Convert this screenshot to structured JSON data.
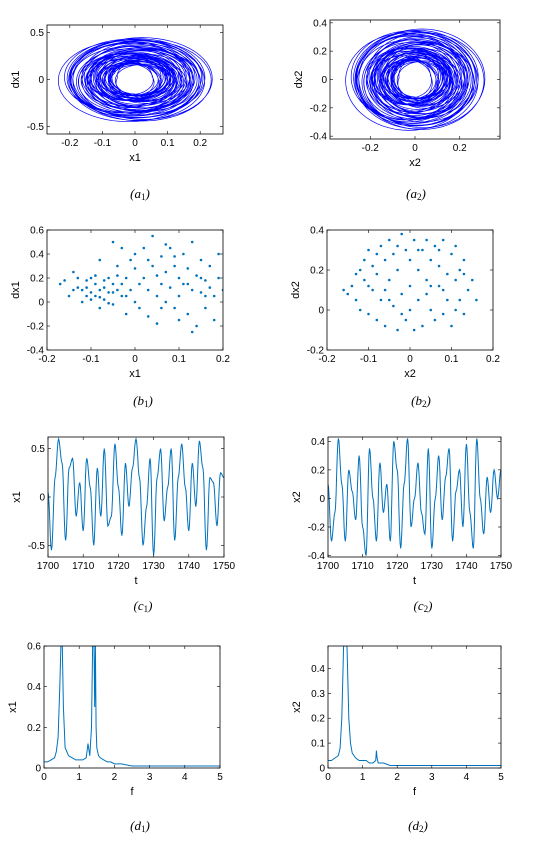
{
  "line_color": "#0072bd",
  "orbit_color": "#0000ff",
  "chart_data": [
    {
      "id": "a1",
      "type": "line",
      "style": "orbit",
      "caption": "a",
      "caption_sub": "1",
      "xlabel": "x1",
      "ylabel": "dx1",
      "xlim": [
        -0.27,
        0.27
      ],
      "ylim": [
        -0.58,
        0.58
      ],
      "xticks": [
        -0.2,
        -0.1,
        0,
        0.1,
        0.2
      ],
      "xticklabels": [
        "-0.2",
        "-0.1",
        "0",
        "0.1",
        "0.2"
      ],
      "yticks": [
        -0.5,
        0,
        0.5
      ],
      "yticklabels": [
        "-0.5",
        "0",
        "0.5"
      ],
      "orbit": {
        "center": [
          0.0,
          0.0
        ],
        "rx": 0.22,
        "ry": 0.45,
        "loops": 60
      }
    },
    {
      "id": "a2",
      "type": "line",
      "style": "orbit",
      "caption": "a",
      "caption_sub": "2",
      "xlabel": "x2",
      "ylabel": "dx2",
      "xlim": [
        -0.38,
        0.38
      ],
      "ylim": [
        -0.42,
        0.42
      ],
      "xticks": [
        -0.2,
        0,
        0.2
      ],
      "xticklabels": [
        "-0.2",
        "0",
        "0.2"
      ],
      "yticks": [
        -0.4,
        -0.2,
        0,
        0.2,
        0.4
      ],
      "yticklabels": [
        "-0.4",
        "-0.2",
        "0",
        "0.2",
        "0.4"
      ],
      "orbit": {
        "center": [
          0.0,
          0.0
        ],
        "rx": 0.29,
        "ry": 0.36,
        "loops": 60
      }
    },
    {
      "id": "b1",
      "type": "scatter",
      "caption": "b",
      "caption_sub": "1",
      "xlabel": "x1",
      "ylabel": "dx1",
      "xlim": [
        -0.2,
        0.2
      ],
      "ylim": [
        -0.4,
        0.6
      ],
      "xticks": [
        -0.2,
        -0.1,
        0,
        0.1,
        0.2
      ],
      "xticklabels": [
        "-0.2",
        "-0.1",
        "0",
        "0.1",
        "0.2"
      ],
      "yticks": [
        -0.4,
        -0.2,
        0,
        0.2,
        0.4,
        0.6
      ],
      "yticklabels": [
        "-0.4",
        "-0.2",
        "0",
        "0.2",
        "0.4",
        "0.6"
      ],
      "points": [
        [
          -0.17,
          0.15
        ],
        [
          -0.16,
          0.18
        ],
        [
          -0.15,
          0.05
        ],
        [
          -0.14,
          0.25
        ],
        [
          -0.13,
          0.2
        ],
        [
          -0.12,
          0.1
        ],
        [
          -0.12,
          0.0
        ],
        [
          -0.11,
          0.12
        ],
        [
          -0.1,
          0.08
        ],
        [
          -0.1,
          0.2
        ],
        [
          -0.09,
          0.15
        ],
        [
          -0.09,
          0.05
        ],
        [
          -0.08,
          0.1
        ],
        [
          -0.08,
          0.35
        ],
        [
          -0.08,
          -0.05
        ],
        [
          -0.07,
          0.12
        ],
        [
          -0.07,
          0.02
        ],
        [
          -0.06,
          0.2
        ],
        [
          -0.06,
          0.08
        ],
        [
          -0.05,
          0.15
        ],
        [
          -0.05,
          0.5
        ],
        [
          -0.05,
          -0.02
        ],
        [
          -0.04,
          0.1
        ],
        [
          -0.04,
          0.3
        ],
        [
          -0.03,
          0.05
        ],
        [
          -0.03,
          0.45
        ],
        [
          -0.02,
          0.2
        ],
        [
          -0.02,
          -0.1
        ],
        [
          -0.01,
          0.1
        ],
        [
          -0.01,
          0.35
        ],
        [
          0.0,
          0.0
        ],
        [
          0.0,
          0.28
        ],
        [
          0.01,
          0.15
        ],
        [
          0.01,
          -0.05
        ],
        [
          0.02,
          0.45
        ],
        [
          0.02,
          0.2
        ],
        [
          0.03,
          0.1
        ],
        [
          0.03,
          -0.12
        ],
        [
          0.04,
          0.55
        ],
        [
          0.04,
          0.3
        ],
        [
          0.05,
          0.05
        ],
        [
          0.05,
          -0.18
        ],
        [
          0.06,
          0.38
        ],
        [
          0.06,
          0.15
        ],
        [
          0.07,
          0.0
        ],
        [
          0.07,
          0.25
        ],
        [
          0.08,
          0.45
        ],
        [
          0.08,
          0.12
        ],
        [
          0.09,
          -0.05
        ],
        [
          0.09,
          0.3
        ],
        [
          0.1,
          0.2
        ],
        [
          0.1,
          0.05
        ],
        [
          0.11,
          0.4
        ],
        [
          0.11,
          0.15
        ],
        [
          0.12,
          -0.1
        ],
        [
          0.12,
          0.28
        ],
        [
          0.13,
          0.1
        ],
        [
          0.13,
          0.5
        ],
        [
          0.14,
          0.22
        ],
        [
          0.14,
          -0.2
        ],
        [
          0.15,
          0.08
        ],
        [
          0.15,
          0.35
        ],
        [
          0.16,
          0.18
        ],
        [
          0.16,
          -0.05
        ],
        [
          0.17,
          0.12
        ],
        [
          0.17,
          0.3
        ],
        [
          0.18,
          0.05
        ],
        [
          0.18,
          -0.15
        ],
        [
          0.19,
          0.2
        ],
        [
          0.2,
          0.1
        ],
        [
          -0.13,
          0.12
        ],
        [
          -0.11,
          0.18
        ],
        [
          -0.1,
          0.02
        ],
        [
          -0.09,
          0.22
        ],
        [
          -0.07,
          0.18
        ],
        [
          -0.06,
          -0.01
        ],
        [
          -0.04,
          0.22
        ],
        [
          -0.03,
          0.15
        ],
        [
          0.0,
          0.4
        ],
        [
          0.05,
          0.22
        ],
        [
          0.09,
          0.38
        ],
        [
          0.12,
          0.15
        ],
        [
          0.15,
          0.2
        ],
        [
          0.19,
          0.4
        ],
        [
          -0.14,
          0.1
        ],
        [
          -0.11,
          0.05
        ],
        [
          -0.08,
          0.04
        ],
        [
          -0.05,
          0.08
        ],
        [
          0.03,
          0.35
        ],
        [
          0.06,
          -0.05
        ],
        [
          0.1,
          -0.15
        ],
        [
          0.13,
          -0.25
        ],
        [
          0.16,
          0.05
        ],
        [
          0.07,
          0.48
        ],
        [
          -0.02,
          0.05
        ]
      ]
    },
    {
      "id": "b2",
      "type": "scatter",
      "caption": "b",
      "caption_sub": "2",
      "xlabel": "x2",
      "ylabel": "dx2",
      "xlim": [
        -0.2,
        0.2
      ],
      "ylim": [
        -0.2,
        0.4
      ],
      "xticks": [
        -0.2,
        -0.1,
        0,
        0.1,
        0.2
      ],
      "xticklabels": [
        "-0.2",
        "-0.1",
        "0",
        "0.1",
        "0.2"
      ],
      "yticks": [
        -0.2,
        0,
        0.2,
        0.4
      ],
      "yticklabels": [
        "-0.2",
        "0",
        "0.2",
        "0.4"
      ],
      "points": [
        [
          -0.16,
          0.1
        ],
        [
          -0.15,
          0.08
        ],
        [
          -0.14,
          0.12
        ],
        [
          -0.13,
          0.05
        ],
        [
          -0.12,
          0.2
        ],
        [
          -0.12,
          0.0
        ],
        [
          -0.11,
          0.25
        ],
        [
          -0.11,
          0.15
        ],
        [
          -0.1,
          -0.02
        ],
        [
          -0.1,
          0.3
        ],
        [
          -0.09,
          0.1
        ],
        [
          -0.09,
          0.22
        ],
        [
          -0.08,
          -0.05
        ],
        [
          -0.08,
          0.18
        ],
        [
          -0.07,
          0.32
        ],
        [
          -0.07,
          0.05
        ],
        [
          -0.06,
          0.25
        ],
        [
          -0.06,
          -0.08
        ],
        [
          -0.05,
          0.15
        ],
        [
          -0.05,
          0.35
        ],
        [
          -0.04,
          0.02
        ],
        [
          -0.04,
          0.28
        ],
        [
          -0.03,
          -0.1
        ],
        [
          -0.03,
          0.2
        ],
        [
          -0.02,
          0.38
        ],
        [
          -0.02,
          0.08
        ],
        [
          -0.01,
          0.3
        ],
        [
          -0.01,
          -0.05
        ],
        [
          0.0,
          0.25
        ],
        [
          0.0,
          0.0
        ],
        [
          0.01,
          0.35
        ],
        [
          0.01,
          -0.1
        ],
        [
          0.02,
          0.2
        ],
        [
          0.02,
          0.05
        ],
        [
          0.03,
          0.3
        ],
        [
          0.03,
          -0.08
        ],
        [
          0.04,
          0.15
        ],
        [
          0.04,
          0.35
        ],
        [
          0.05,
          0.0
        ],
        [
          0.05,
          0.25
        ],
        [
          0.06,
          -0.05
        ],
        [
          0.06,
          0.32
        ],
        [
          0.07,
          0.12
        ],
        [
          0.07,
          0.22
        ],
        [
          0.08,
          -0.02
        ],
        [
          0.08,
          0.35
        ],
        [
          0.09,
          0.18
        ],
        [
          0.09,
          0.05
        ],
        [
          0.1,
          0.28
        ],
        [
          0.1,
          -0.08
        ],
        [
          0.11,
          0.15
        ],
        [
          0.11,
          0.32
        ],
        [
          0.12,
          0.05
        ],
        [
          0.12,
          0.2
        ],
        [
          0.13,
          0.25
        ],
        [
          0.13,
          -0.02
        ],
        [
          0.14,
          0.1
        ],
        [
          0.15,
          0.15
        ],
        [
          0.16,
          0.05
        ],
        [
          -0.13,
          0.18
        ],
        [
          -0.1,
          0.12
        ],
        [
          -0.08,
          0.28
        ],
        [
          -0.05,
          0.05
        ],
        [
          -0.02,
          -0.02
        ],
        [
          0.02,
          0.3
        ],
        [
          0.05,
          0.12
        ],
        [
          0.08,
          0.1
        ],
        [
          0.11,
          0.0
        ],
        [
          0.13,
          0.18
        ],
        [
          -0.06,
          0.1
        ],
        [
          0.0,
          0.12
        ],
        [
          0.04,
          0.08
        ],
        [
          -0.03,
          0.32
        ],
        [
          0.07,
          0.3
        ]
      ]
    },
    {
      "id": "c1",
      "type": "line",
      "style": "series",
      "caption": "c",
      "caption_sub": "1",
      "xlabel": "t",
      "ylabel": "x1",
      "xlim": [
        1700,
        1750
      ],
      "ylim": [
        -0.62,
        0.62
      ],
      "xticks": [
        1700,
        1710,
        1720,
        1730,
        1740,
        1750
      ],
      "xticklabels": [
        "1700",
        "1710",
        "1720",
        "1730",
        "1740",
        "1750"
      ],
      "yticks": [
        -0.5,
        0,
        0.5
      ],
      "yticklabels": [
        "-0.5",
        "0",
        "0.5"
      ],
      "x": [
        1700,
        1701,
        1702,
        1703,
        1704,
        1705,
        1706,
        1707,
        1708,
        1709,
        1710,
        1711,
        1712,
        1713,
        1714,
        1715,
        1716,
        1717,
        1718,
        1719,
        1720,
        1721,
        1722,
        1723,
        1724,
        1725,
        1726,
        1727,
        1728,
        1729,
        1730,
        1731,
        1732,
        1733,
        1734,
        1735,
        1736,
        1737,
        1738,
        1739,
        1740,
        1741,
        1742,
        1743,
        1744,
        1745,
        1746,
        1747,
        1748,
        1749,
        1750
      ],
      "y": [
        0.05,
        -0.55,
        0.2,
        0.6,
        0.35,
        -0.45,
        0.3,
        0.4,
        -0.2,
        0.15,
        -0.35,
        0.4,
        0.1,
        -0.5,
        0.3,
        -0.2,
        0.5,
        -0.3,
        -0.2,
        0.55,
        0.1,
        -0.4,
        0.35,
        -0.1,
        0.3,
        0.6,
        0.2,
        -0.5,
        -0.1,
        0.4,
        -0.6,
        0.2,
        0.5,
        -0.25,
        0.1,
        0.5,
        -0.45,
        0.2,
        0.55,
        0.1,
        -0.35,
        0.35,
        -0.1,
        0.58,
        0.3,
        -0.55,
        0.2,
        0.15,
        -0.3,
        0.25,
        0.2
      ]
    },
    {
      "id": "c2",
      "type": "line",
      "style": "series",
      "caption": "c",
      "caption_sub": "2",
      "xlabel": "t",
      "ylabel": "x2",
      "xlim": [
        1700,
        1750
      ],
      "ylim": [
        -0.41,
        0.43
      ],
      "xticks": [
        1700,
        1710,
        1720,
        1730,
        1740,
        1750
      ],
      "xticklabels": [
        "1700",
        "1710",
        "1720",
        "1730",
        "1740",
        "1750"
      ],
      "yticks": [
        -0.4,
        -0.2,
        0,
        0.2,
        0.4
      ],
      "yticklabels": [
        "-0.4",
        "-0.2",
        "0",
        "0.2",
        "0.4"
      ],
      "x": [
        1700,
        1701,
        1702,
        1703,
        1704,
        1705,
        1706,
        1707,
        1708,
        1709,
        1710,
        1711,
        1712,
        1713,
        1714,
        1715,
        1716,
        1717,
        1718,
        1719,
        1720,
        1721,
        1722,
        1723,
        1724,
        1725,
        1726,
        1727,
        1728,
        1729,
        1730,
        1731,
        1732,
        1733,
        1734,
        1735,
        1736,
        1737,
        1738,
        1739,
        1740,
        1741,
        1742,
        1743,
        1744,
        1745,
        1746,
        1747,
        1748,
        1749,
        1750
      ],
      "y": [
        0.1,
        -0.3,
        -0.1,
        0.42,
        0.1,
        -0.3,
        0.2,
        0.05,
        -0.15,
        0.3,
        -0.2,
        -0.4,
        0.35,
        0.0,
        -0.3,
        0.25,
        -0.1,
        0.1,
        -0.3,
        0.4,
        0.2,
        -0.35,
        0.1,
        0.42,
        -0.2,
        0.0,
        0.25,
        -0.1,
        -0.25,
        0.35,
        -0.35,
        0.0,
        0.3,
        -0.15,
        0.15,
        0.35,
        -0.3,
        0.05,
        0.2,
        -0.2,
        0.38,
        -0.1,
        -0.35,
        0.42,
        0.0,
        -0.25,
        0.15,
        -0.1,
        0.2,
        0.0,
        0.2
      ]
    },
    {
      "id": "d1",
      "type": "line",
      "style": "spectrum",
      "caption": "d",
      "caption_sub": "1",
      "xlabel": "f",
      "ylabel": "x1",
      "xlim": [
        0,
        5
      ],
      "ylim": [
        0,
        0.6
      ],
      "xticks": [
        0,
        1,
        2,
        3,
        4,
        5
      ],
      "xticklabels": [
        "0",
        "1",
        "2",
        "3",
        "4",
        "5"
      ],
      "yticks": [
        0,
        0.2,
        0.4,
        0.6
      ],
      "yticklabels": [
        "0",
        "0.2",
        "0.4",
        "0.6"
      ],
      "x": [
        0,
        0.1,
        0.2,
        0.3,
        0.35,
        0.4,
        0.45,
        0.48,
        0.5,
        0.52,
        0.55,
        0.6,
        0.7,
        0.8,
        0.9,
        1.0,
        1.1,
        1.2,
        1.25,
        1.3,
        1.35,
        1.38,
        1.4,
        1.42,
        1.44,
        1.46,
        1.48,
        1.5,
        1.55,
        1.6,
        1.7,
        1.8,
        1.9,
        2.0,
        2.2,
        2.5,
        3.0,
        3.5,
        4.0,
        4.5,
        5.0
      ],
      "y": [
        0.03,
        0.03,
        0.04,
        0.05,
        0.08,
        0.15,
        0.4,
        0.6,
        0.6,
        0.6,
        0.3,
        0.1,
        0.06,
        0.05,
        0.04,
        0.04,
        0.04,
        0.05,
        0.12,
        0.06,
        0.2,
        0.6,
        0.6,
        0.6,
        0.3,
        0.6,
        0.2,
        0.1,
        0.06,
        0.05,
        0.04,
        0.03,
        0.03,
        0.02,
        0.02,
        0.01,
        0.01,
        0.01,
        0.01,
        0.01,
        0.01
      ]
    },
    {
      "id": "d2",
      "type": "line",
      "style": "spectrum",
      "caption": "d",
      "caption_sub": "2",
      "xlabel": "f",
      "ylabel": "x2",
      "xlim": [
        0,
        5
      ],
      "ylim": [
        0,
        0.49
      ],
      "xticks": [
        0,
        1,
        2,
        3,
        4,
        5
      ],
      "xticklabels": [
        "0",
        "1",
        "2",
        "3",
        "4",
        "5"
      ],
      "yticks": [
        0,
        0.1,
        0.2,
        0.3,
        0.4
      ],
      "yticklabels": [
        "0",
        "0.1",
        "0.2",
        "0.3",
        "0.4"
      ],
      "x": [
        0,
        0.1,
        0.2,
        0.3,
        0.35,
        0.4,
        0.45,
        0.48,
        0.5,
        0.52,
        0.55,
        0.6,
        0.65,
        0.7,
        0.8,
        0.9,
        1.0,
        1.1,
        1.2,
        1.3,
        1.38,
        1.4,
        1.42,
        1.45,
        1.5,
        1.6,
        1.8,
        2.0,
        2.5,
        3.0,
        4.0,
        5.0
      ],
      "y": [
        0.03,
        0.03,
        0.04,
        0.05,
        0.08,
        0.2,
        0.49,
        0.49,
        0.49,
        0.49,
        0.49,
        0.2,
        0.1,
        0.06,
        0.04,
        0.03,
        0.03,
        0.03,
        0.02,
        0.02,
        0.03,
        0.07,
        0.04,
        0.02,
        0.02,
        0.02,
        0.01,
        0.01,
        0.01,
        0.01,
        0.01,
        0.01
      ]
    }
  ]
}
